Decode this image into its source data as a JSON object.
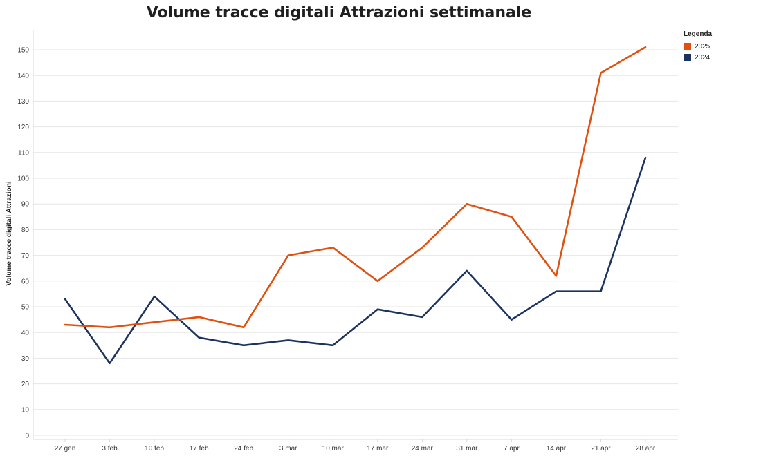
{
  "chart_data": {
    "type": "line",
    "title": "Volume tracce digitali Attrazioni settimanale",
    "xlabel": "",
    "ylabel": "Volume tracce digitali Attrazioni",
    "categories": [
      "27 gen",
      "3 feb",
      "10 feb",
      "17 feb",
      "24 feb",
      "3 mar",
      "10 mar",
      "17 mar",
      "24 mar",
      "31 mar",
      "7 apr",
      "14 apr",
      "21 apr",
      "28 apr"
    ],
    "ylim": [
      0,
      155
    ],
    "yticks": [
      0,
      10,
      20,
      30,
      40,
      50,
      60,
      70,
      80,
      90,
      100,
      110,
      120,
      130,
      140,
      150
    ],
    "grid": true,
    "legend_title": "Legenda",
    "legend_position": "top-right",
    "series": [
      {
        "name": "2025",
        "color": "#e0500f",
        "values": [
          43,
          42,
          44,
          46,
          42,
          70,
          73,
          60,
          73,
          90,
          85,
          62,
          141,
          151
        ]
      },
      {
        "name": "2024",
        "color": "#1c335e",
        "values": [
          53,
          28,
          54,
          38,
          35,
          37,
          35,
          49,
          46,
          64,
          45,
          56,
          56,
          108
        ]
      }
    ]
  }
}
